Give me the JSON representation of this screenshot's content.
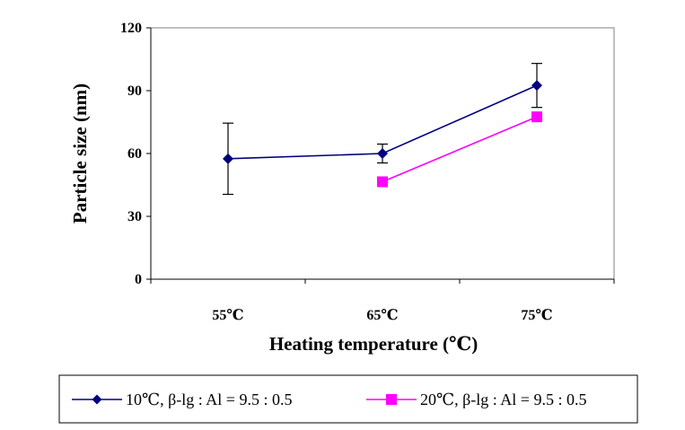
{
  "chart_data": {
    "type": "line",
    "categories": [
      "55℃",
      "65℃",
      "75℃"
    ],
    "xlabel": "Heating temperature (℃)",
    "ylabel": "Particle size (nm)",
    "ylim": [
      0,
      120
    ],
    "yticks": [
      0,
      30,
      60,
      90,
      120
    ],
    "grid": false,
    "legend_position": "bottom",
    "series": [
      {
        "name": "10℃, β-lg : Al = 9.5 : 0.5",
        "color": "#000080",
        "marker": "diamond",
        "values": [
          57.5,
          60,
          92.5
        ],
        "error": [
          17,
          4.5,
          10.5
        ]
      },
      {
        "name": "20℃, β-lg : Al = 9.5 : 0.5",
        "color": "#ff00ff",
        "marker": "square",
        "values": [
          null,
          46.5,
          77.5
        ],
        "error": [
          null,
          null,
          null
        ]
      }
    ]
  }
}
